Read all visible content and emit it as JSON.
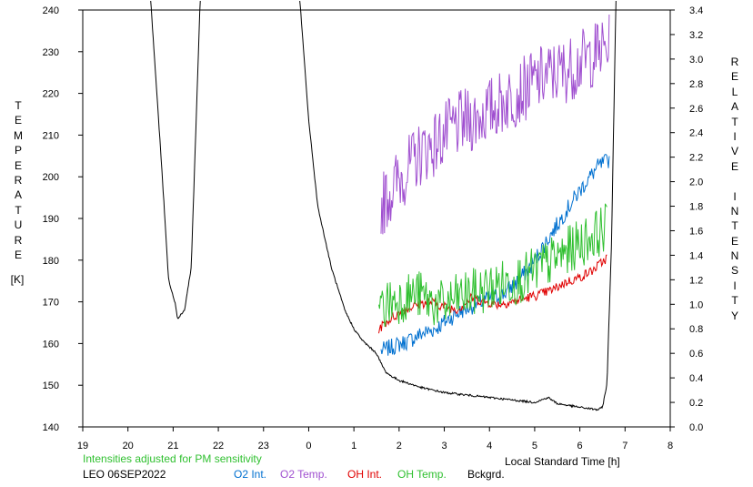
{
  "chart_data": {
    "type": "line",
    "x_axis": {
      "label": "Local Standard Time [h]",
      "range": [
        -5,
        8
      ],
      "ticks": [
        "19",
        "20",
        "21",
        "22",
        "23",
        "0",
        "1",
        "2",
        "3",
        "4",
        "5",
        "6",
        "7",
        "8"
      ]
    },
    "y_left": {
      "label": "TEMPERATURE",
      "unit": "[K]",
      "range": [
        140,
        240
      ],
      "ticks": [
        "240",
        "230",
        "220",
        "210",
        "200",
        "190",
        "180",
        "170",
        "160",
        "150",
        "140"
      ]
    },
    "y_right": {
      "label": "RELATIVE INTENSITY",
      "range": [
        0,
        3.4
      ],
      "ticks": [
        "3.4",
        "3.2",
        "3.0",
        "2.8",
        "2.6",
        "2.4",
        "2.2",
        "2.0",
        "1.8",
        "1.6",
        "1.4",
        "1.2",
        "1.0",
        "0.8",
        "0.6",
        "0.4",
        "0.2",
        "0.0"
      ]
    },
    "note": "Intensities adjusted for PM sensitivity",
    "station": "LEO 06SEP2022",
    "series": [
      {
        "name": "O2 Int.",
        "color": "#0070d0",
        "axis": "right",
        "x": [
          1.6,
          1.9,
          2.2,
          2.5,
          2.8,
          3.1,
          3.4,
          3.7,
          4.0,
          4.3,
          4.6,
          4.9,
          5.2,
          5.5,
          5.8,
          6.1,
          6.4,
          6.65
        ],
        "y": [
          0.62,
          0.66,
          0.7,
          0.76,
          0.8,
          0.88,
          0.95,
          1.0,
          1.05,
          1.08,
          1.18,
          1.3,
          1.48,
          1.65,
          1.82,
          1.98,
          2.12,
          2.18
        ]
      },
      {
        "name": "O2 Temp.",
        "color": "#a050d0",
        "axis": "left",
        "x": [
          1.6,
          1.9,
          2.2,
          2.5,
          2.8,
          3.1,
          3.4,
          3.7,
          4.0,
          4.3,
          4.6,
          4.9,
          5.2,
          5.5,
          5.8,
          6.1,
          6.4,
          6.65
        ],
        "y": [
          193,
          198,
          202,
          206,
          208,
          211,
          213,
          214,
          216,
          218,
          220,
          222,
          224,
          225,
          226,
          228,
          230,
          231
        ]
      },
      {
        "name": "OH Int.",
        "color": "#e00000",
        "axis": "right",
        "x": [
          1.55,
          1.8,
          2.1,
          2.4,
          2.7,
          3.0,
          3.3,
          3.6,
          3.9,
          4.2,
          4.5,
          4.8,
          5.1,
          5.4,
          5.7,
          6.0,
          6.3,
          6.6
        ],
        "y": [
          0.8,
          0.88,
          0.95,
          1.0,
          1.02,
          0.98,
          0.96,
          1.05,
          1.02,
          1.0,
          1.02,
          1.05,
          1.08,
          1.12,
          1.18,
          1.22,
          1.28,
          1.38
        ]
      },
      {
        "name": "OH Temp.",
        "color": "#30c030",
        "axis": "left",
        "x": [
          1.55,
          1.8,
          2.1,
          2.4,
          2.7,
          3.0,
          3.3,
          3.6,
          3.9,
          4.2,
          4.5,
          4.8,
          5.1,
          5.4,
          5.7,
          6.0,
          6.3,
          6.6
        ],
        "y": [
          168,
          170,
          171,
          172,
          170,
          169,
          171,
          172,
          173,
          174,
          175,
          176,
          178,
          180,
          182,
          184,
          186,
          188
        ]
      },
      {
        "name": "Bckgrd.",
        "color": "#000000",
        "axis": "right",
        "x": [
          -3.5,
          -3.25,
          -3.1,
          -2.95,
          -2.9,
          -2.75,
          -2.6,
          -2.4,
          -0.2,
          0.0,
          0.2,
          0.5,
          0.8,
          1.0,
          1.2,
          1.5,
          1.6,
          1.7,
          1.8,
          2.0,
          2.5,
          3.0,
          3.5,
          4.0,
          4.5,
          5.0,
          5.3,
          5.5,
          6.0,
          6.4,
          6.5,
          6.6,
          6.7,
          6.8
        ],
        "y": [
          3.5,
          2.1,
          1.2,
          1.0,
          0.88,
          0.95,
          1.3,
          3.5,
          3.5,
          2.5,
          1.8,
          1.3,
          0.95,
          0.8,
          0.7,
          0.6,
          0.52,
          0.45,
          0.42,
          0.38,
          0.32,
          0.28,
          0.26,
          0.24,
          0.22,
          0.2,
          0.24,
          0.19,
          0.16,
          0.14,
          0.16,
          0.35,
          1.5,
          3.5
        ]
      }
    ]
  }
}
